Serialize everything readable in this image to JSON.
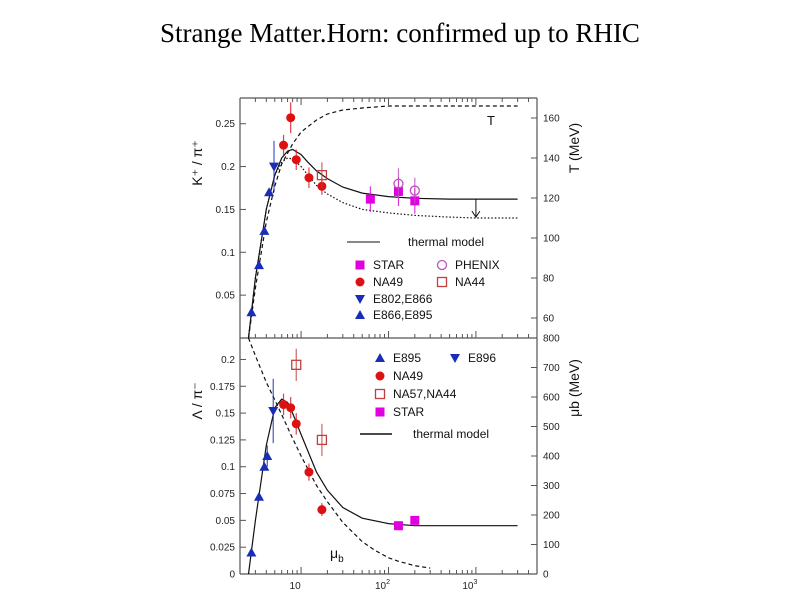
{
  "slide": {
    "title": "Strange Matter.Horn: confirmed up to RHIC"
  },
  "chart_data": [
    {
      "type": "scatter",
      "title": "",
      "xlabel": "",
      "ylabel": "K⁺ / π⁺",
      "y2label": "T (MeV)",
      "x_scale": "log",
      "xlim": [
        2,
        5000
      ],
      "ylim": [
        0,
        0.28
      ],
      "y2lim": [
        50,
        170
      ],
      "yticks": [
        "0.05",
        "0.1",
        "0.15",
        "0.2",
        "0.25"
      ],
      "y2ticks": [
        "60",
        "80",
        "100",
        "120",
        "140",
        "160"
      ],
      "curve_annotation": "T",
      "legend": {
        "thermal": "thermal model",
        "items": [
          {
            "label": "STAR",
            "marker": "square-filled",
            "color": "#e000e0"
          },
          {
            "label": "PHENIX",
            "marker": "circle-open",
            "color": "#c050c0"
          },
          {
            "label": "NA49",
            "marker": "circle-filled",
            "color": "#dd1111"
          },
          {
            "label": "NA44",
            "marker": "square-open",
            "color": "#c04040"
          },
          {
            "label": "E802,E866",
            "marker": "triangle-down",
            "color": "#1a2db8"
          },
          {
            "label": "E866,E895",
            "marker": "triangle-up",
            "color": "#1a2db8"
          }
        ]
      },
      "series": [
        {
          "name": "E866,E895",
          "marker": "triangle-up",
          "color": "#1a2db8",
          "points": [
            {
              "x": 2.7,
              "y": 0.03
            },
            {
              "x": 3.3,
              "y": 0.085
            },
            {
              "x": 3.8,
              "y": 0.125
            },
            {
              "x": 4.3,
              "y": 0.17
            }
          ]
        },
        {
          "name": "E802,E866",
          "marker": "triangle-down",
          "color": "#1a2db8",
          "points": [
            {
              "x": 4.9,
              "y": 0.2,
              "err": 0.03
            }
          ]
        },
        {
          "name": "NA49",
          "marker": "circle-filled",
          "color": "#dd1111",
          "points": [
            {
              "x": 6.3,
              "y": 0.225,
              "err": 0.012
            },
            {
              "x": 7.6,
              "y": 0.257,
              "err": 0.018
            },
            {
              "x": 8.8,
              "y": 0.208,
              "err": 0.012
            },
            {
              "x": 12.3,
              "y": 0.187,
              "err": 0.012
            },
            {
              "x": 17.3,
              "y": 0.177,
              "err": 0.01
            }
          ]
        },
        {
          "name": "NA44",
          "marker": "square-open",
          "color": "#c04040",
          "points": [
            {
              "x": 17.3,
              "y": 0.19,
              "err": 0.015
            }
          ]
        },
        {
          "name": "STAR",
          "marker": "square-filled",
          "color": "#e000e0",
          "points": [
            {
              "x": 62,
              "y": 0.162,
              "err": 0.015
            },
            {
              "x": 130,
              "y": 0.171,
              "err": 0.017
            },
            {
              "x": 200,
              "y": 0.16,
              "err": 0.015
            }
          ]
        },
        {
          "name": "PHENIX",
          "marker": "circle-open",
          "color": "#c050c0",
          "points": [
            {
              "x": 130,
              "y": 0.18,
              "err": 0.018
            },
            {
              "x": 200,
              "y": 0.172,
              "err": 0.015
            }
          ]
        }
      ],
      "curves": [
        {
          "name": "K+/pi+ thermal",
          "style": "solid",
          "axis": "left",
          "points": [
            [
              2.5,
              0
            ],
            [
              3,
              0.07
            ],
            [
              4,
              0.15
            ],
            [
              5,
              0.19
            ],
            [
              6,
              0.21
            ],
            [
              7,
              0.218
            ],
            [
              8,
              0.22
            ],
            [
              10,
              0.214
            ],
            [
              12,
              0.205
            ],
            [
              15,
              0.195
            ],
            [
              20,
              0.186
            ],
            [
              30,
              0.176
            ],
            [
              50,
              0.169
            ],
            [
              100,
              0.165
            ],
            [
              200,
              0.163
            ],
            [
              500,
              0.162
            ],
            [
              1000,
              0.162
            ],
            [
              3000,
              0.162
            ]
          ]
        },
        {
          "name": "K+/pi+ thermal (lower)",
          "style": "dotted",
          "axis": "left",
          "points": [
            [
              2.5,
              0
            ],
            [
              3,
              0.07
            ],
            [
              4,
              0.15
            ],
            [
              5,
              0.19
            ],
            [
              6,
              0.205
            ],
            [
              7,
              0.21
            ],
            [
              8,
              0.209
            ],
            [
              10,
              0.2
            ],
            [
              12,
              0.19
            ],
            [
              15,
              0.178
            ],
            [
              20,
              0.168
            ],
            [
              30,
              0.158
            ],
            [
              50,
              0.15
            ],
            [
              100,
              0.146
            ],
            [
              200,
              0.143
            ],
            [
              500,
              0.141
            ],
            [
              1000,
              0.14
            ],
            [
              3000,
              0.14
            ]
          ]
        },
        {
          "name": "T",
          "style": "dashed",
          "axis": "right",
          "points": [
            [
              2.5,
              50
            ],
            [
              3,
              75
            ],
            [
              4,
              108
            ],
            [
              5,
              126
            ],
            [
              6,
              137
            ],
            [
              8,
              147
            ],
            [
              10,
              153
            ],
            [
              15,
              159
            ],
            [
              20,
              162
            ],
            [
              30,
              164
            ],
            [
              50,
              165
            ],
            [
              100,
              166
            ],
            [
              1000,
              166
            ],
            [
              3000,
              166
            ]
          ]
        }
      ],
      "upper_limit_arrow": {
        "x": 1000,
        "y": 0.162
      }
    },
    {
      "type": "scatter",
      "title": "",
      "xlabel": "",
      "ylabel": "Λ / π⁻",
      "y2label": "μb (MeV)",
      "x_scale": "log",
      "xlim": [
        2,
        5000
      ],
      "ylim": [
        0,
        0.22
      ],
      "y2lim": [
        0,
        800
      ],
      "xticks": [
        {
          "base": "10",
          "exp": ""
        },
        {
          "base": "10",
          "exp": "2"
        },
        {
          "base": "10",
          "exp": "3"
        }
      ],
      "yticks": [
        "0",
        "0.025",
        "0.05",
        "0.075",
        "0.1",
        "0.125",
        "0.15",
        "0.175",
        "0.2"
      ],
      "y2ticks": [
        "0",
        "100",
        "200",
        "300",
        "400",
        "500",
        "600",
        "700",
        "800"
      ],
      "curve_annotation": {
        "base": "μ",
        "sub": "b"
      },
      "legend": {
        "thermal": "thermal model",
        "items": [
          {
            "label": "E895",
            "marker": "triangle-up",
            "color": "#1a2db8"
          },
          {
            "label": "E896",
            "marker": "triangle-down",
            "color": "#1a2db8"
          },
          {
            "label": "NA49",
            "marker": "circle-filled",
            "color": "#dd1111"
          },
          {
            "label": "NA57,NA44",
            "marker": "square-open",
            "color": "#c04040"
          },
          {
            "label": "STAR",
            "marker": "square-filled",
            "color": "#e000e0"
          }
        ]
      },
      "series": [
        {
          "name": "E895",
          "marker": "triangle-up",
          "color": "#1a2db8",
          "points": [
            {
              "x": 2.7,
              "y": 0.02
            },
            {
              "x": 3.3,
              "y": 0.072
            },
            {
              "x": 3.8,
              "y": 0.1
            },
            {
              "x": 4.1,
              "y": 0.11,
              "err": 0.01
            }
          ]
        },
        {
          "name": "E896",
          "marker": "triangle-down",
          "color": "#1a2db8",
          "points": [
            {
              "x": 4.8,
              "y": 0.152,
              "err": 0.03
            }
          ]
        },
        {
          "name": "NA49",
          "marker": "circle-filled",
          "color": "#dd1111",
          "points": [
            {
              "x": 6.3,
              "y": 0.158,
              "err": 0.01
            },
            {
              "x": 7.6,
              "y": 0.155,
              "err": 0.01
            },
            {
              "x": 8.8,
              "y": 0.14,
              "err": 0.01
            },
            {
              "x": 12.3,
              "y": 0.095,
              "err": 0.008
            },
            {
              "x": 17.3,
              "y": 0.06,
              "err": 0.006
            }
          ]
        },
        {
          "name": "NA57,NA44",
          "marker": "square-open",
          "color": "#c04040",
          "points": [
            {
              "x": 8.8,
              "y": 0.195,
              "err": 0.015
            },
            {
              "x": 17.3,
              "y": 0.125,
              "err": 0.015
            }
          ]
        },
        {
          "name": "STAR",
          "marker": "square-filled",
          "color": "#e000e0",
          "points": [
            {
              "x": 130,
              "y": 0.045,
              "err": 0.004
            },
            {
              "x": 200,
              "y": 0.05,
              "err": 0.004
            }
          ]
        }
      ],
      "curves": [
        {
          "name": "Lambda/pi- thermal",
          "style": "solid",
          "axis": "left",
          "points": [
            [
              2.5,
              0
            ],
            [
              3,
              0.05
            ],
            [
              4,
              0.12
            ],
            [
              5,
              0.155
            ],
            [
              6,
              0.163
            ],
            [
              7,
              0.16
            ],
            [
              8,
              0.15
            ],
            [
              10,
              0.13
            ],
            [
              15,
              0.095
            ],
            [
              20,
              0.078
            ],
            [
              30,
              0.062
            ],
            [
              50,
              0.052
            ],
            [
              100,
              0.047
            ],
            [
              200,
              0.045
            ],
            [
              500,
              0.045
            ],
            [
              1000,
              0.045
            ],
            [
              3000,
              0.045
            ]
          ]
        },
        {
          "name": "mu_b",
          "style": "dashed",
          "axis": "right",
          "points": [
            [
              2.5,
              800
            ],
            [
              3,
              740
            ],
            [
              4,
              650
            ],
            [
              5,
              590
            ],
            [
              6,
              540
            ],
            [
              8,
              460
            ],
            [
              10,
              400
            ],
            [
              15,
              300
            ],
            [
              20,
              245
            ],
            [
              30,
              175
            ],
            [
              50,
              110
            ],
            [
              70,
              80
            ],
            [
              100,
              55
            ],
            [
              130,
              43
            ],
            [
              200,
              28
            ],
            [
              300,
              20
            ]
          ]
        }
      ]
    }
  ]
}
